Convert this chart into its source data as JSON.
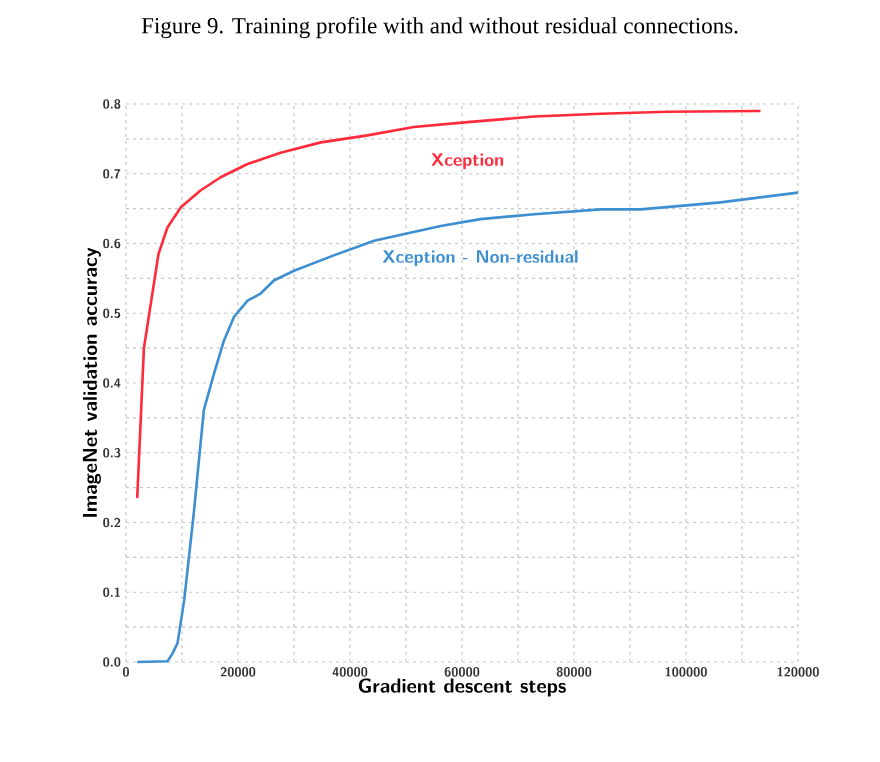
{
  "chart_data": {
    "type": "line",
    "title": "Figure 9. Training profile with and without residual connections.",
    "xlabel": "Gradient descent steps",
    "ylabel": "ImageNet validation accuracy",
    "xlim": [
      0,
      120000
    ],
    "ylim": [
      0,
      0.8
    ],
    "xticks": [
      0,
      20000,
      40000,
      60000,
      80000,
      100000,
      120000
    ],
    "yticks": [
      {
        "value": 0,
        "label": "0.0"
      },
      0.1,
      0.2,
      0.3,
      0.4,
      0.5,
      0.6,
      0.7,
      0.8
    ],
    "grid": true,
    "line_style": "solid",
    "marker": "none",
    "series": [
      {
        "name": "Xception",
        "color": "#ff2a3a",
        "x": [
          2000,
          3200,
          5800,
          7400,
          9800,
          13300,
          16900,
          21700,
          27600,
          34800,
          43100,
          51400,
          61000,
          72900,
          84800,
          96700,
          113300
        ],
        "values": [
          0.235,
          0.45,
          0.585,
          0.623,
          0.652,
          0.676,
          0.695,
          0.714,
          0.73,
          0.745,
          0.755,
          0.767,
          0.774,
          0.782,
          0.786,
          0.789,
          0.79
        ]
      },
      {
        "name": "Xception - Non-residual",
        "color": "#3d8fd1",
        "x": [
          2000,
          7400,
          8300,
          9200,
          10400,
          12100,
          13900,
          15700,
          17500,
          19300,
          21700,
          24000,
          26400,
          30000,
          37100,
          44300,
          56200,
          63300,
          72900,
          84800,
          91900,
          106200,
          120000
        ],
        "values": [
          0.0,
          0.001,
          0.012,
          0.027,
          0.089,
          0.213,
          0.361,
          0.413,
          0.461,
          0.495,
          0.518,
          0.528,
          0.547,
          0.561,
          0.583,
          0.604,
          0.625,
          0.635,
          0.642,
          0.649,
          0.649,
          0.659,
          0.673
        ]
      }
    ]
  }
}
